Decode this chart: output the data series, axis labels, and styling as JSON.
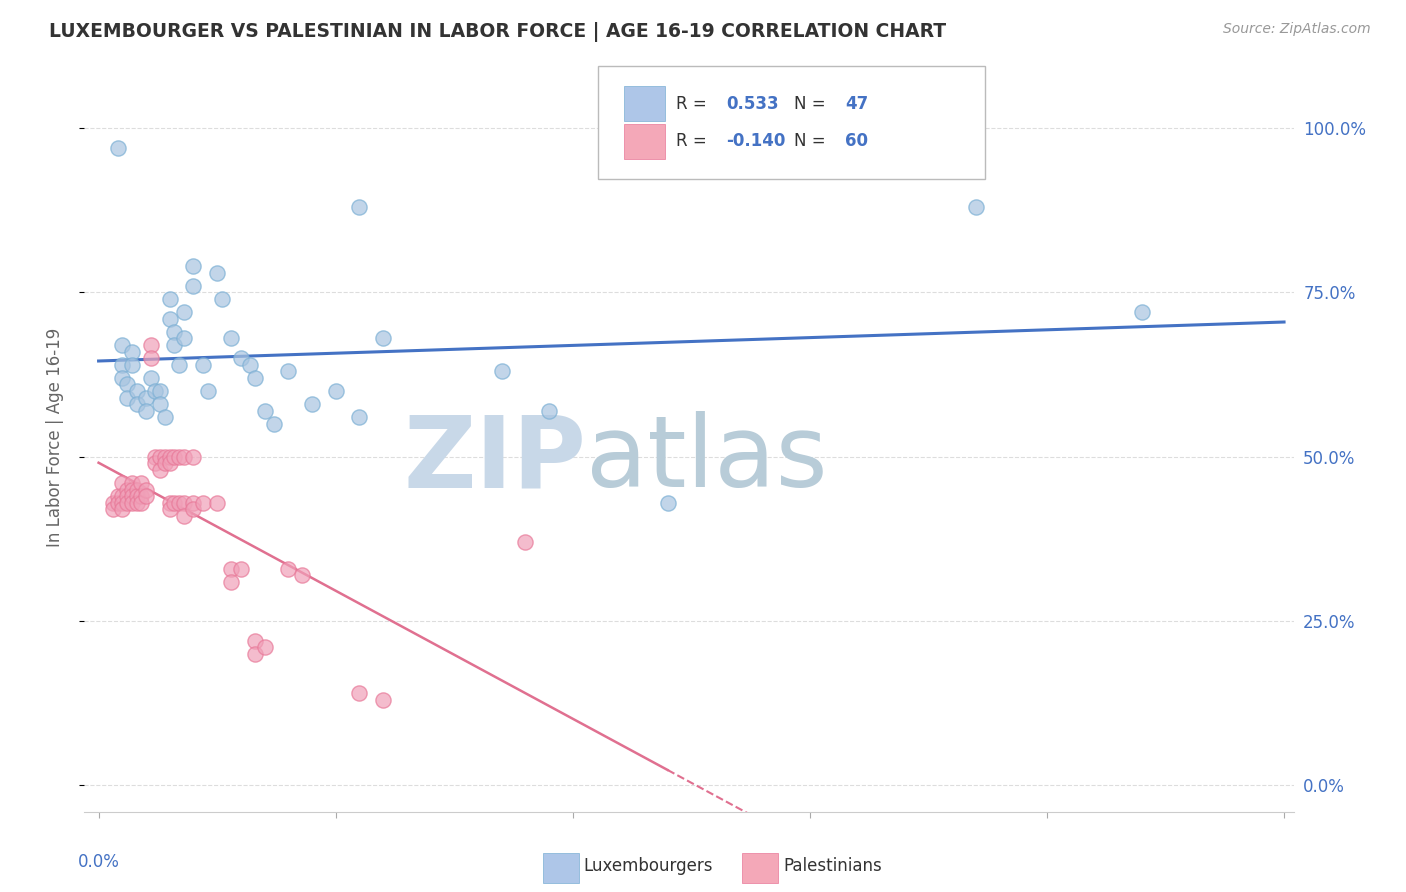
{
  "title": "LUXEMBOURGER VS PALESTINIAN IN LABOR FORCE | AGE 16-19 CORRELATION CHART",
  "source_text": "Source: ZipAtlas.com",
  "ylabel": "In Labor Force | Age 16-19",
  "lux_color": "#a8c4e0",
  "pal_color": "#f0a0b8",
  "lux_edge_color": "#7bafd4",
  "pal_edge_color": "#e87898",
  "lux_line_color": "#4472c4",
  "pal_line_color": "#e07090",
  "legend_box_color": "#aec6e8",
  "legend_box_color2": "#f4a8b8",
  "background_color": "#ffffff",
  "grid_color": "#dddddd",
  "watermark_zip_color": "#c8d8e8",
  "watermark_atlas_color": "#b8ccd8",
  "axis_label_color": "#4472c4",
  "title_color": "#333333",
  "source_color": "#999999",
  "lux_points": [
    [
      0.004,
      0.97
    ],
    [
      0.055,
      0.88
    ],
    [
      0.005,
      0.67
    ],
    [
      0.005,
      0.64
    ],
    [
      0.005,
      0.62
    ],
    [
      0.007,
      0.66
    ],
    [
      0.007,
      0.64
    ],
    [
      0.006,
      0.61
    ],
    [
      0.006,
      0.59
    ],
    [
      0.008,
      0.6
    ],
    [
      0.008,
      0.58
    ],
    [
      0.01,
      0.59
    ],
    [
      0.01,
      0.57
    ],
    [
      0.011,
      0.62
    ],
    [
      0.012,
      0.6
    ],
    [
      0.013,
      0.6
    ],
    [
      0.013,
      0.58
    ],
    [
      0.014,
      0.56
    ],
    [
      0.015,
      0.74
    ],
    [
      0.015,
      0.71
    ],
    [
      0.016,
      0.69
    ],
    [
      0.016,
      0.67
    ],
    [
      0.017,
      0.64
    ],
    [
      0.018,
      0.72
    ],
    [
      0.018,
      0.68
    ],
    [
      0.02,
      0.79
    ],
    [
      0.02,
      0.76
    ],
    [
      0.022,
      0.64
    ],
    [
      0.023,
      0.6
    ],
    [
      0.025,
      0.78
    ],
    [
      0.026,
      0.74
    ],
    [
      0.028,
      0.68
    ],
    [
      0.03,
      0.65
    ],
    [
      0.032,
      0.64
    ],
    [
      0.033,
      0.62
    ],
    [
      0.035,
      0.57
    ],
    [
      0.037,
      0.55
    ],
    [
      0.04,
      0.63
    ],
    [
      0.045,
      0.58
    ],
    [
      0.05,
      0.6
    ],
    [
      0.055,
      0.56
    ],
    [
      0.06,
      0.68
    ],
    [
      0.085,
      0.63
    ],
    [
      0.095,
      0.57
    ],
    [
      0.12,
      0.43
    ],
    [
      0.185,
      0.88
    ],
    [
      0.22,
      0.72
    ]
  ],
  "pal_points": [
    [
      0.003,
      0.43
    ],
    [
      0.003,
      0.42
    ],
    [
      0.004,
      0.44
    ],
    [
      0.004,
      0.43
    ],
    [
      0.005,
      0.46
    ],
    [
      0.005,
      0.44
    ],
    [
      0.005,
      0.43
    ],
    [
      0.005,
      0.42
    ],
    [
      0.006,
      0.45
    ],
    [
      0.006,
      0.44
    ],
    [
      0.006,
      0.43
    ],
    [
      0.007,
      0.46
    ],
    [
      0.007,
      0.45
    ],
    [
      0.007,
      0.44
    ],
    [
      0.007,
      0.43
    ],
    [
      0.008,
      0.45
    ],
    [
      0.008,
      0.44
    ],
    [
      0.008,
      0.43
    ],
    [
      0.009,
      0.46
    ],
    [
      0.009,
      0.44
    ],
    [
      0.009,
      0.43
    ],
    [
      0.01,
      0.45
    ],
    [
      0.01,
      0.44
    ],
    [
      0.011,
      0.67
    ],
    [
      0.011,
      0.65
    ],
    [
      0.012,
      0.5
    ],
    [
      0.012,
      0.49
    ],
    [
      0.013,
      0.5
    ],
    [
      0.013,
      0.48
    ],
    [
      0.014,
      0.5
    ],
    [
      0.014,
      0.49
    ],
    [
      0.015,
      0.5
    ],
    [
      0.015,
      0.49
    ],
    [
      0.015,
      0.43
    ],
    [
      0.015,
      0.42
    ],
    [
      0.016,
      0.5
    ],
    [
      0.016,
      0.43
    ],
    [
      0.017,
      0.5
    ],
    [
      0.017,
      0.43
    ],
    [
      0.018,
      0.5
    ],
    [
      0.018,
      0.43
    ],
    [
      0.018,
      0.41
    ],
    [
      0.02,
      0.5
    ],
    [
      0.02,
      0.43
    ],
    [
      0.02,
      0.42
    ],
    [
      0.022,
      0.43
    ],
    [
      0.025,
      0.43
    ],
    [
      0.028,
      0.33
    ],
    [
      0.028,
      0.31
    ],
    [
      0.03,
      0.33
    ],
    [
      0.033,
      0.22
    ],
    [
      0.033,
      0.2
    ],
    [
      0.035,
      0.21
    ],
    [
      0.04,
      0.33
    ],
    [
      0.043,
      0.32
    ],
    [
      0.055,
      0.14
    ],
    [
      0.06,
      0.13
    ],
    [
      0.09,
      0.37
    ]
  ]
}
